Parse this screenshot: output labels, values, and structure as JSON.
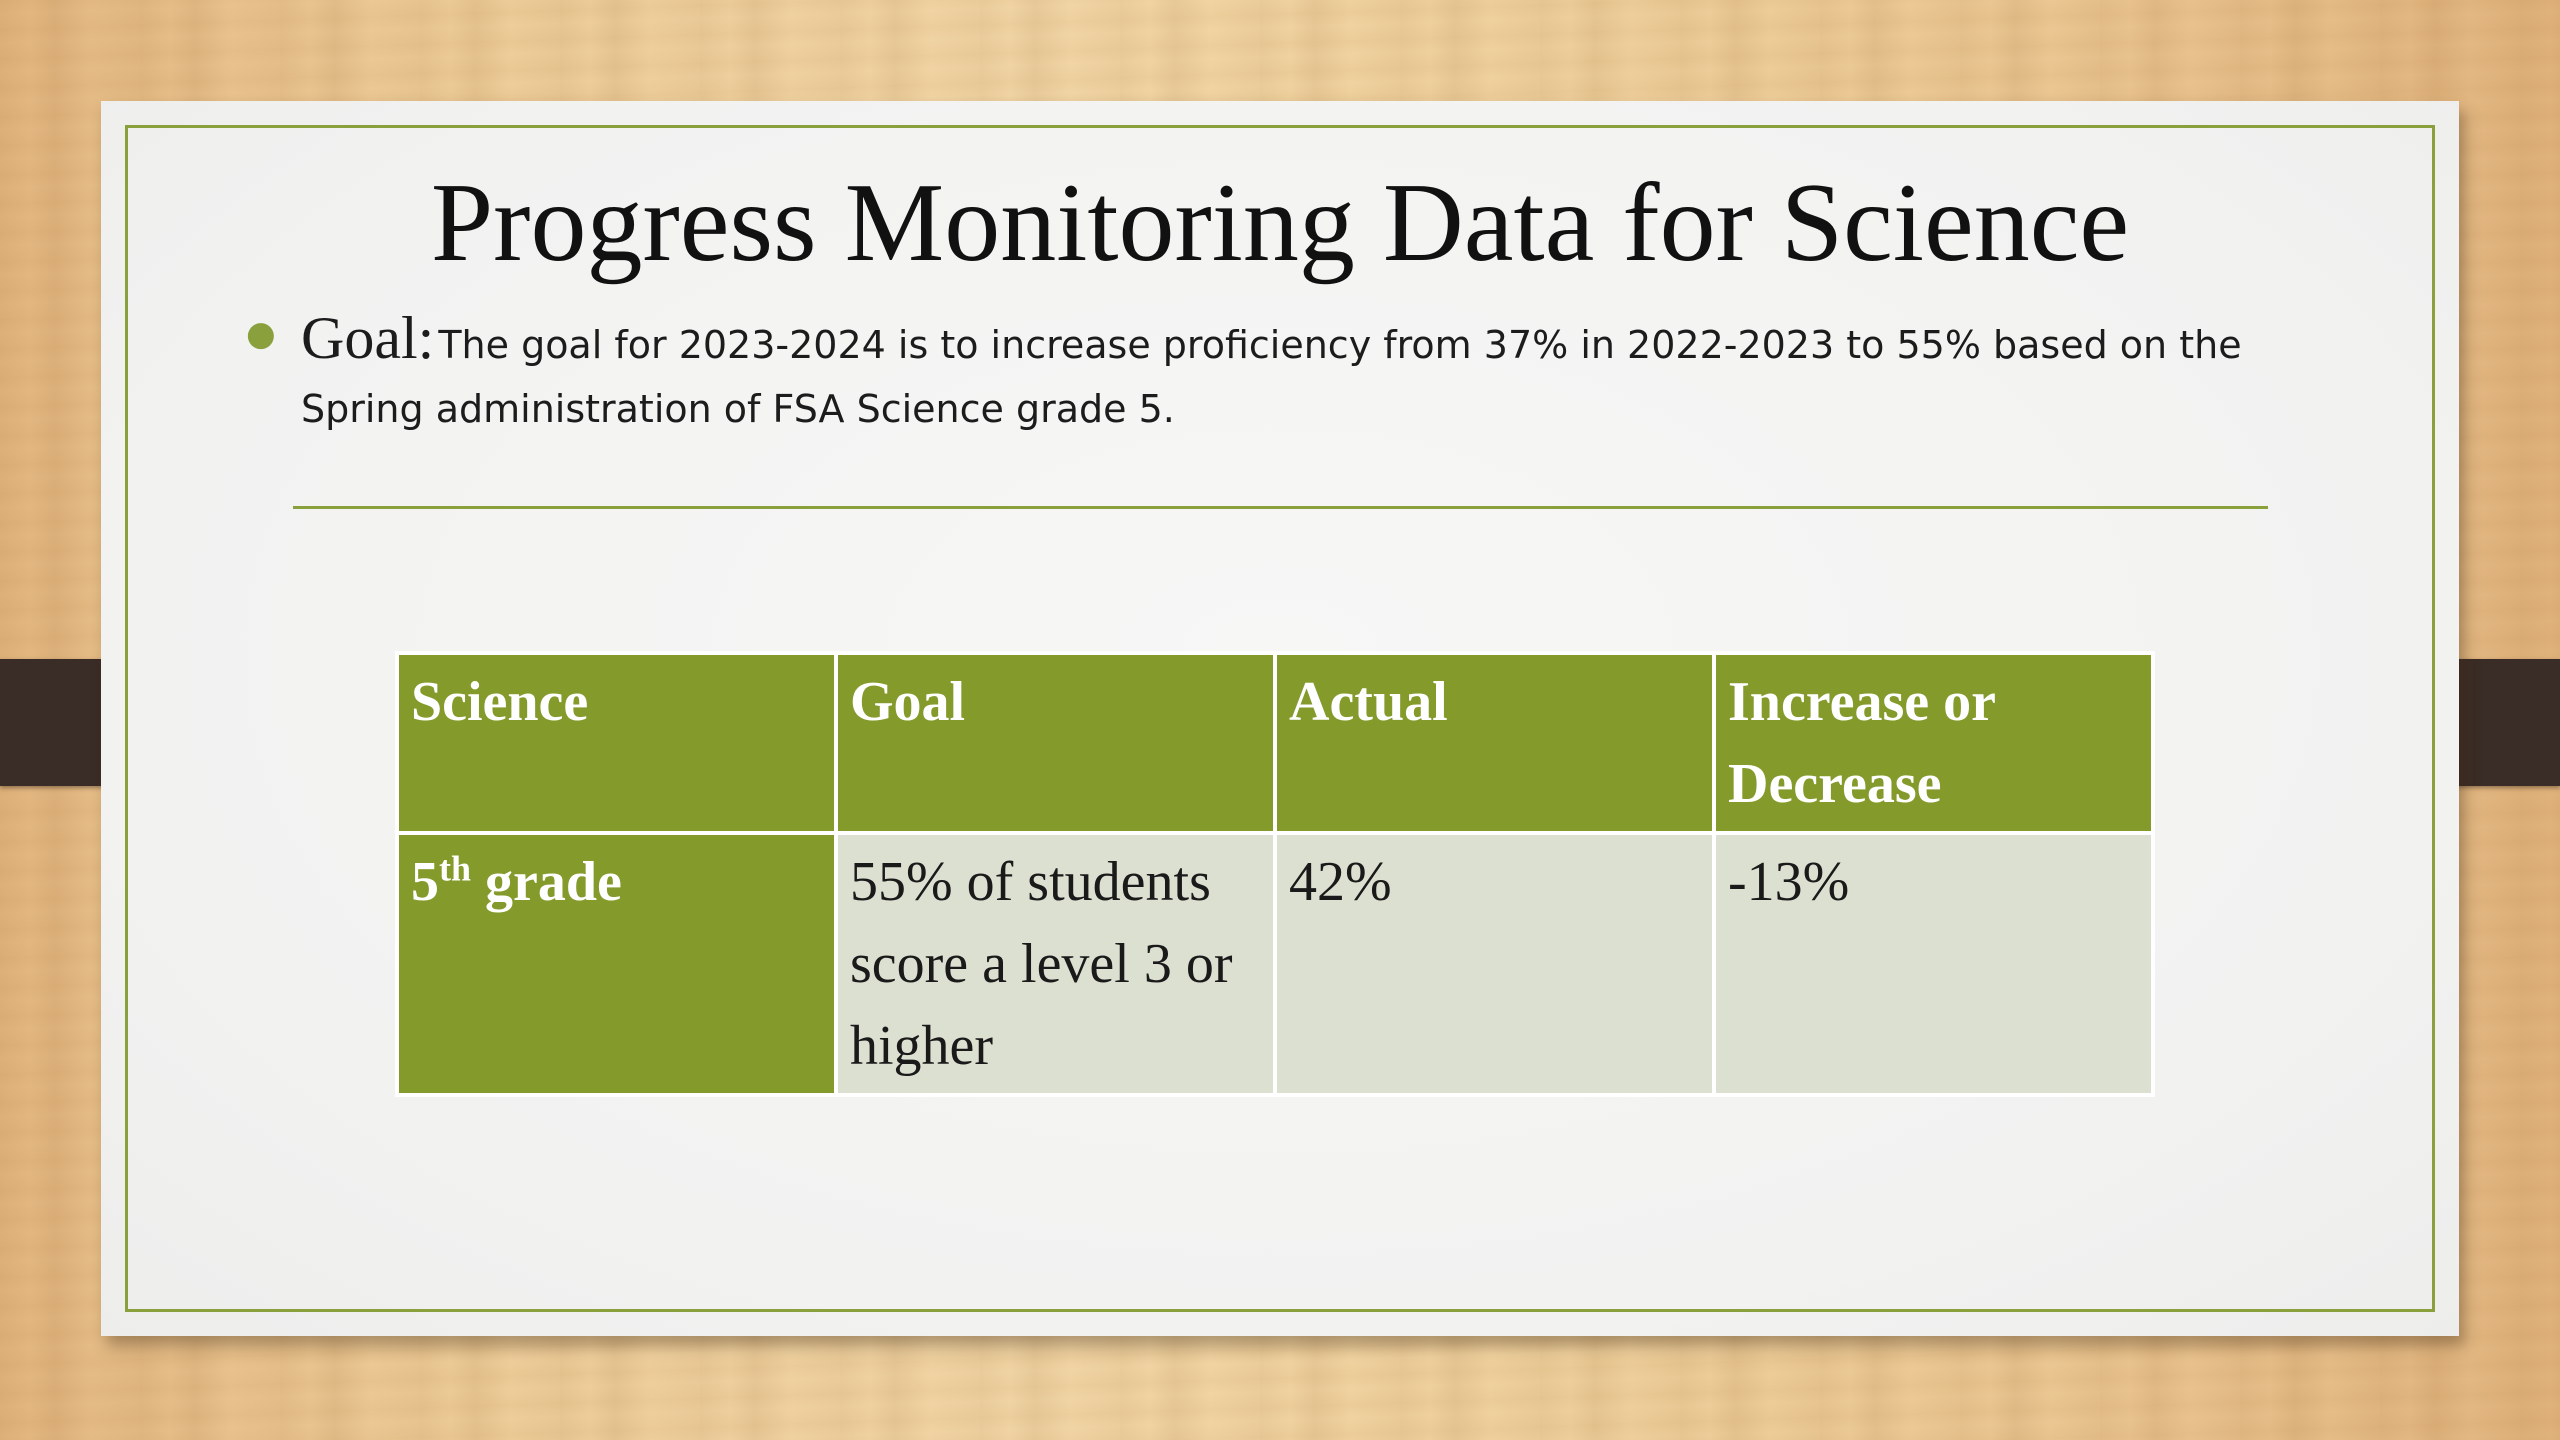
{
  "slide": {
    "title": "Progress Monitoring Data for Science",
    "goal": {
      "label": "Goal:",
      "text": "The goal for 2023-2024 is to increase proficiency from 37% in 2022-2023 to 55% based on the Spring administration of FSA Science grade 5."
    }
  },
  "table": {
    "headers": [
      "Science",
      "Goal",
      "Actual",
      "Increase or Decrease"
    ],
    "row": {
      "grade_number": "5",
      "grade_suffix": "th",
      "grade_word": "grade",
      "goal": "55% of students score a level 3 or higher",
      "actual": "42%",
      "change": "-13%"
    }
  },
  "colors": {
    "accent_green": "#849b2c",
    "cell_light": "#dce0d0",
    "border_green": "#8aa03c"
  }
}
